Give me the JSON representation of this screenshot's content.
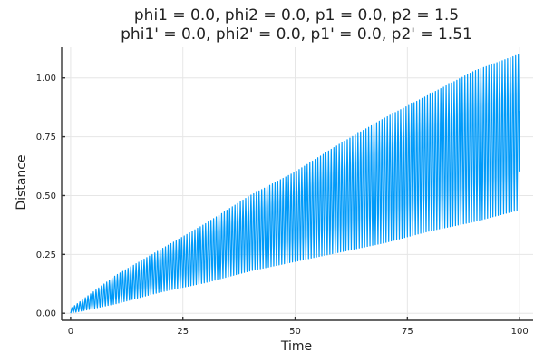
{
  "chart_data": {
    "type": "line",
    "title": "phi1 = 0.0, phi2 = 0.0, p1 = 0.0, p2 = 1.5",
    "subtitle": "phi1' = 0.0, phi2' = 0.0, p1' = 0.0, p2' = 1.51",
    "xlabel": "Time",
    "ylabel": "Distance",
    "xlim": [
      -2,
      103
    ],
    "ylim": [
      -0.03,
      1.13
    ],
    "xticks": [
      0,
      25,
      50,
      75,
      100
    ],
    "xtick_labels": [
      "0",
      "25",
      "50",
      "75",
      "100"
    ],
    "yticks": [
      0.0,
      0.25,
      0.5,
      0.75,
      1.0
    ],
    "ytick_labels": [
      "0.00",
      "0.25",
      "0.50",
      "0.75",
      "1.00"
    ],
    "grid": true,
    "legend": "none",
    "series": [
      {
        "color": "#009af9",
        "samples_per_oscillation": 6,
        "oscillation_count": 168,
        "x_range": [
          0,
          100
        ],
        "x": [
          0,
          10,
          20,
          30,
          40,
          50,
          60,
          70,
          80,
          90,
          100
        ],
        "y_max": [
          0.02,
          0.16,
          0.27,
          0.38,
          0.5,
          0.6,
          0.72,
          0.83,
          0.93,
          1.03,
          1.1
        ],
        "y_min": [
          0.0,
          0.04,
          0.09,
          0.13,
          0.18,
          0.22,
          0.26,
          0.3,
          0.35,
          0.39,
          0.44
        ],
        "y_end": 0.86
      }
    ]
  }
}
